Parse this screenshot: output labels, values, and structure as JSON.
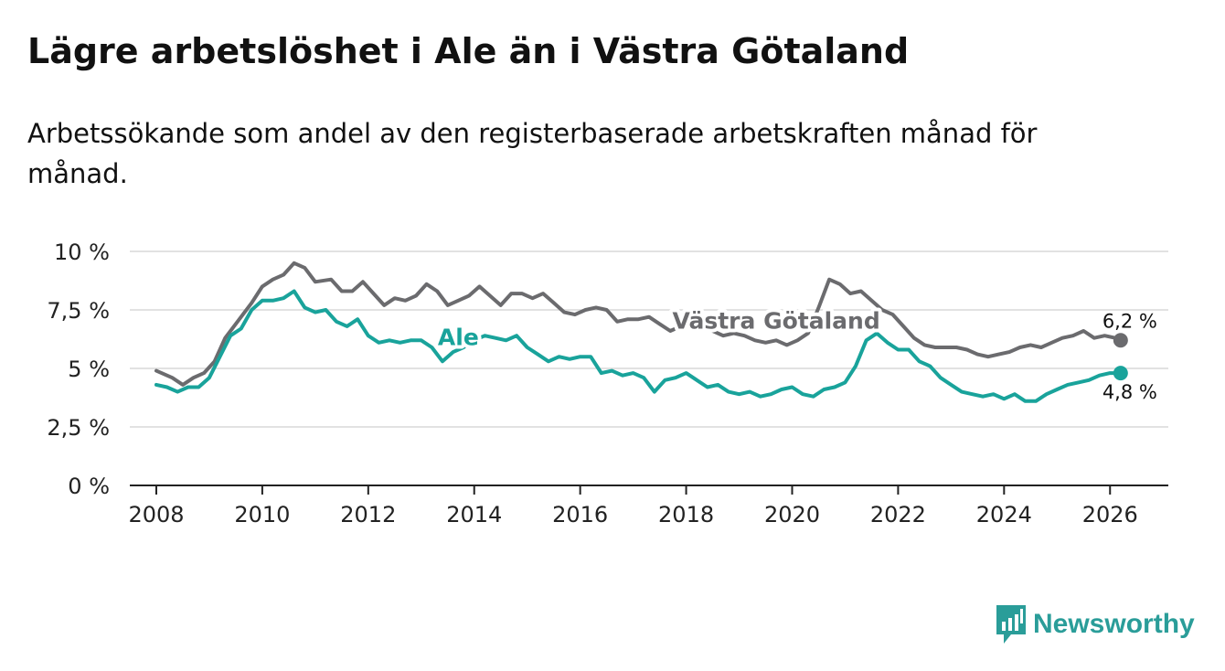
{
  "title": "Lägre arbetslöshet i Ale än i Västra Götaland",
  "subtitle": "Arbetssökande som andel av den registerbaserade arbetskraften månad för månad.",
  "brand": {
    "name": "Newsworthy",
    "color": "#2a9d99",
    "icon": "bar-chart-logo-icon"
  },
  "chart_data": {
    "type": "line",
    "ylim": [
      0,
      10
    ],
    "yticks": [
      0,
      2.5,
      5,
      7.5,
      10
    ],
    "ytick_labels": [
      "0 %",
      "2,5 %",
      "5 %",
      "7,5 %",
      "10 %"
    ],
    "xlim": [
      2007.5,
      2027.1
    ],
    "xticks": [
      2008,
      2010,
      2012,
      2014,
      2016,
      2018,
      2020,
      2022,
      2024,
      2026
    ],
    "xtick_labels": [
      "2008",
      "2010",
      "2012",
      "2014",
      "2016",
      "2018",
      "2020",
      "2022",
      "2024",
      "2026"
    ],
    "grid": true,
    "series": [
      {
        "name": "Västra Götaland",
        "color": "#6b6b6e",
        "label_at": [
          2019.7,
          6.7
        ],
        "end_label": "6,2 %",
        "points": [
          [
            2008.0,
            4.9
          ],
          [
            2008.3,
            4.6
          ],
          [
            2008.5,
            4.3
          ],
          [
            2008.7,
            4.6
          ],
          [
            2008.9,
            4.8
          ],
          [
            2009.1,
            5.3
          ],
          [
            2009.3,
            6.3
          ],
          [
            2009.6,
            7.2
          ],
          [
            2009.8,
            7.8
          ],
          [
            2010.0,
            8.5
          ],
          [
            2010.2,
            8.8
          ],
          [
            2010.4,
            9.0
          ],
          [
            2010.6,
            9.5
          ],
          [
            2010.8,
            9.3
          ],
          [
            2011.0,
            8.7
          ],
          [
            2011.3,
            8.8
          ],
          [
            2011.5,
            8.3
          ],
          [
            2011.7,
            8.3
          ],
          [
            2011.9,
            8.7
          ],
          [
            2012.1,
            8.2
          ],
          [
            2012.3,
            7.7
          ],
          [
            2012.5,
            8.0
          ],
          [
            2012.7,
            7.9
          ],
          [
            2012.9,
            8.1
          ],
          [
            2013.1,
            8.6
          ],
          [
            2013.3,
            8.3
          ],
          [
            2013.5,
            7.7
          ],
          [
            2013.7,
            7.9
          ],
          [
            2013.9,
            8.1
          ],
          [
            2014.1,
            8.5
          ],
          [
            2014.3,
            8.1
          ],
          [
            2014.5,
            7.7
          ],
          [
            2014.7,
            8.2
          ],
          [
            2014.9,
            8.2
          ],
          [
            2015.1,
            8.0
          ],
          [
            2015.3,
            8.2
          ],
          [
            2015.5,
            7.8
          ],
          [
            2015.7,
            7.4
          ],
          [
            2015.9,
            7.3
          ],
          [
            2016.1,
            7.5
          ],
          [
            2016.3,
            7.6
          ],
          [
            2016.5,
            7.5
          ],
          [
            2016.7,
            7.0
          ],
          [
            2016.9,
            7.1
          ],
          [
            2017.1,
            7.1
          ],
          [
            2017.3,
            7.2
          ],
          [
            2017.5,
            6.9
          ],
          [
            2017.7,
            6.6
          ],
          [
            2017.9,
            6.8
          ],
          [
            2018.1,
            6.8
          ],
          [
            2018.3,
            6.9
          ],
          [
            2018.5,
            6.6
          ],
          [
            2018.7,
            6.4
          ],
          [
            2018.9,
            6.5
          ],
          [
            2019.1,
            6.4
          ],
          [
            2019.3,
            6.2
          ],
          [
            2019.5,
            6.1
          ],
          [
            2019.7,
            6.2
          ],
          [
            2019.9,
            6.0
          ],
          [
            2020.1,
            6.2
          ],
          [
            2020.3,
            6.5
          ],
          [
            2020.5,
            7.6
          ],
          [
            2020.7,
            8.8
          ],
          [
            2020.9,
            8.6
          ],
          [
            2021.1,
            8.2
          ],
          [
            2021.3,
            8.3
          ],
          [
            2021.5,
            7.9
          ],
          [
            2021.7,
            7.5
          ],
          [
            2021.9,
            7.3
          ],
          [
            2022.1,
            6.8
          ],
          [
            2022.3,
            6.3
          ],
          [
            2022.5,
            6.0
          ],
          [
            2022.7,
            5.9
          ],
          [
            2022.9,
            5.9
          ],
          [
            2023.1,
            5.9
          ],
          [
            2023.3,
            5.8
          ],
          [
            2023.5,
            5.6
          ],
          [
            2023.7,
            5.5
          ],
          [
            2023.9,
            5.6
          ],
          [
            2024.1,
            5.7
          ],
          [
            2024.3,
            5.9
          ],
          [
            2024.5,
            6.0
          ],
          [
            2024.7,
            5.9
          ],
          [
            2024.9,
            6.1
          ],
          [
            2025.1,
            6.3
          ],
          [
            2025.3,
            6.4
          ],
          [
            2025.5,
            6.6
          ],
          [
            2025.7,
            6.3
          ],
          [
            2025.9,
            6.4
          ],
          [
            2026.1,
            6.3
          ],
          [
            2026.2,
            6.2
          ]
        ]
      },
      {
        "name": "Ale",
        "color": "#19a39b",
        "label_at": [
          2013.7,
          6.0
        ],
        "end_label": "4,8 %",
        "points": [
          [
            2008.0,
            4.3
          ],
          [
            2008.2,
            4.2
          ],
          [
            2008.4,
            4.0
          ],
          [
            2008.6,
            4.2
          ],
          [
            2008.8,
            4.2
          ],
          [
            2009.0,
            4.6
          ],
          [
            2009.2,
            5.5
          ],
          [
            2009.4,
            6.4
          ],
          [
            2009.6,
            6.7
          ],
          [
            2009.8,
            7.5
          ],
          [
            2010.0,
            7.9
          ],
          [
            2010.2,
            7.9
          ],
          [
            2010.4,
            8.0
          ],
          [
            2010.6,
            8.3
          ],
          [
            2010.8,
            7.6
          ],
          [
            2011.0,
            7.4
          ],
          [
            2011.2,
            7.5
          ],
          [
            2011.4,
            7.0
          ],
          [
            2011.6,
            6.8
          ],
          [
            2011.8,
            7.1
          ],
          [
            2012.0,
            6.4
          ],
          [
            2012.2,
            6.1
          ],
          [
            2012.4,
            6.2
          ],
          [
            2012.6,
            6.1
          ],
          [
            2012.8,
            6.2
          ],
          [
            2013.0,
            6.2
          ],
          [
            2013.2,
            5.9
          ],
          [
            2013.4,
            5.3
          ],
          [
            2013.6,
            5.7
          ],
          [
            2013.8,
            5.9
          ],
          [
            2014.0,
            6.2
          ],
          [
            2014.2,
            6.4
          ],
          [
            2014.4,
            6.3
          ],
          [
            2014.6,
            6.2
          ],
          [
            2014.8,
            6.4
          ],
          [
            2015.0,
            5.9
          ],
          [
            2015.2,
            5.6
          ],
          [
            2015.4,
            5.3
          ],
          [
            2015.6,
            5.5
          ],
          [
            2015.8,
            5.4
          ],
          [
            2016.0,
            5.5
          ],
          [
            2016.2,
            5.5
          ],
          [
            2016.4,
            4.8
          ],
          [
            2016.6,
            4.9
          ],
          [
            2016.8,
            4.7
          ],
          [
            2017.0,
            4.8
          ],
          [
            2017.2,
            4.6
          ],
          [
            2017.4,
            4.0
          ],
          [
            2017.6,
            4.5
          ],
          [
            2017.8,
            4.6
          ],
          [
            2018.0,
            4.8
          ],
          [
            2018.2,
            4.5
          ],
          [
            2018.4,
            4.2
          ],
          [
            2018.6,
            4.3
          ],
          [
            2018.8,
            4.0
          ],
          [
            2019.0,
            3.9
          ],
          [
            2019.2,
            4.0
          ],
          [
            2019.4,
            3.8
          ],
          [
            2019.6,
            3.9
          ],
          [
            2019.8,
            4.1
          ],
          [
            2020.0,
            4.2
          ],
          [
            2020.2,
            3.9
          ],
          [
            2020.4,
            3.8
          ],
          [
            2020.6,
            4.1
          ],
          [
            2020.8,
            4.2
          ],
          [
            2021.0,
            4.4
          ],
          [
            2021.2,
            5.1
          ],
          [
            2021.4,
            6.2
          ],
          [
            2021.6,
            6.5
          ],
          [
            2021.8,
            6.1
          ],
          [
            2022.0,
            5.8
          ],
          [
            2022.2,
            5.8
          ],
          [
            2022.4,
            5.3
          ],
          [
            2022.6,
            5.1
          ],
          [
            2022.8,
            4.6
          ],
          [
            2023.0,
            4.3
          ],
          [
            2023.2,
            4.0
          ],
          [
            2023.4,
            3.9
          ],
          [
            2023.6,
            3.8
          ],
          [
            2023.8,
            3.9
          ],
          [
            2024.0,
            3.7
          ],
          [
            2024.2,
            3.9
          ],
          [
            2024.4,
            3.6
          ],
          [
            2024.6,
            3.6
          ],
          [
            2024.8,
            3.9
          ],
          [
            2025.0,
            4.1
          ],
          [
            2025.2,
            4.3
          ],
          [
            2025.4,
            4.4
          ],
          [
            2025.6,
            4.5
          ],
          [
            2025.8,
            4.7
          ],
          [
            2026.0,
            4.8
          ],
          [
            2026.1,
            4.8
          ],
          [
            2026.2,
            4.8
          ]
        ]
      }
    ]
  }
}
